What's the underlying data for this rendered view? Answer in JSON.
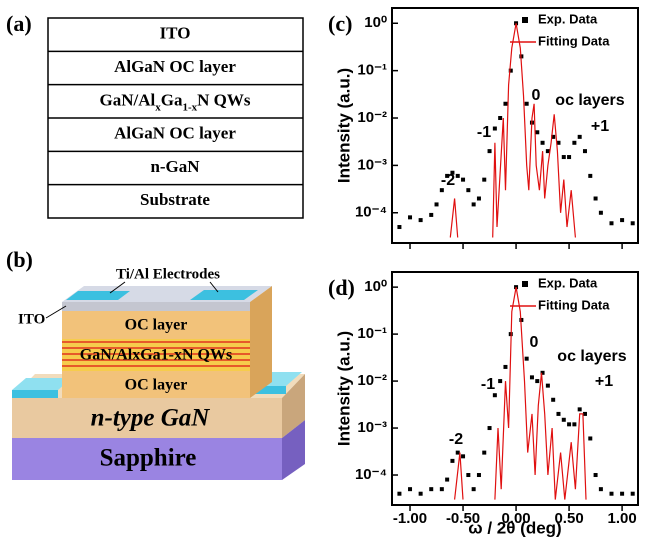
{
  "panel_a": {
    "label": "(a)",
    "layers": [
      "ITO",
      "AlGaN OC layer",
      [
        "GaN/Al",
        "x",
        "Ga",
        "1-x",
        "N  QWs"
      ],
      "AlGaN OC layer",
      "n-GaN",
      "Substrate"
    ]
  },
  "panel_b": {
    "label": "(b)",
    "electrodes": "Ti/Al Electrodes",
    "ito": "ITO",
    "oc_top": "OC layer",
    "qws": "GaN/AlxGa1-xN QWs",
    "oc_bottom": "OC layer",
    "n_gan": "n-type GaN",
    "sapphire": "Sapphire"
  },
  "chart_data": [
    {
      "type": "line",
      "panel_label": "(c)",
      "y_label": "Intensity (a.u.)",
      "log_y": true,
      "legend": "upper right",
      "xlim": [
        -1.17,
        1.15
      ],
      "xticks": [
        -1,
        -0.5,
        0,
        0.5,
        1
      ],
      "ylim": [
        2.3e-05,
        2.1
      ],
      "yticks": [
        {
          "value": 0.0001,
          "label": "10⁻⁴"
        },
        {
          "value": 0.001,
          "label": "10⁻³"
        },
        {
          "value": 0.01,
          "label": "10⁻²"
        },
        {
          "value": 0.1,
          "label": "10⁻¹"
        },
        {
          "value": 1,
          "label": "10⁰"
        }
      ],
      "annotations": [
        "-2",
        "-1",
        "0",
        "oc layers",
        "+1"
      ],
      "series": [
        {
          "name": "Exp. Data",
          "mode": "markers",
          "color": "#000000",
          "x": [
            -1.1,
            -1,
            -0.9,
            -0.8,
            -0.75,
            -0.7,
            -0.65,
            -0.6,
            -0.55,
            -0.5,
            -0.45,
            -0.4,
            -0.35,
            -0.3,
            -0.25,
            -0.2,
            -0.15,
            -0.1,
            -0.05,
            0,
            0.05,
            0.1,
            0.15,
            0.2,
            0.25,
            0.3,
            0.35,
            0.4,
            0.45,
            0.5,
            0.55,
            0.6,
            0.65,
            0.7,
            0.75,
            0.8,
            0.9,
            1,
            1.1
          ],
          "values": [
            5e-05,
            8e-05,
            7e-05,
            9e-05,
            0.00015,
            0.0003,
            0.0006,
            0.0007,
            0.0006,
            0.0005,
            0.0003,
            0.00015,
            0.0002,
            0.0005,
            0.002,
            0.006,
            0.01,
            0.02,
            0.1,
            1,
            0.2,
            0.02,
            0.008,
            0.005,
            0.003,
            0.002,
            0.004,
            0.003,
            0.0015,
            0.0015,
            0.003,
            0.004,
            0.002,
            0.0006,
            0.0002,
            0.0001,
            6e-05,
            7e-05,
            6e-05
          ]
        },
        {
          "name": "Fitting Data",
          "mode": "line",
          "color": "#e01010",
          "x": [
            -0.62,
            -0.58,
            -0.55,
            -0.4,
            -0.22,
            -0.2,
            -0.18,
            -0.12,
            -0.1,
            -0.07,
            -0.04,
            0,
            0.04,
            0.07,
            0.1,
            0.12,
            0.15,
            0.17,
            0.19,
            0.22,
            0.25,
            0.27,
            0.3,
            0.33,
            0.36,
            0.39,
            0.42,
            0.45,
            0.48,
            0.52,
            0.56
          ],
          "values": [
            3e-05,
            0.0002,
            3e-05,
            null,
            3e-05,
            0.003,
            5e-05,
            0.01,
            0.0003,
            0.05,
            0.3,
            1,
            0.3,
            0.03,
            0.001,
            0.0003,
            0.01,
            0.02,
            0.001,
            0.0003,
            0.002,
            0.0002,
            0.001,
            0.003,
            0.012,
            0.002,
            0.0001,
            0.0005,
            5e-05,
            0.0003,
            3e-05
          ]
        }
      ]
    },
    {
      "type": "line",
      "panel_label": "(d)",
      "y_label": "Intensity (a.u.)",
      "x_label": "ω / 2θ (deg)",
      "log_y": true,
      "legend": "upper right",
      "xlim": [
        -1.17,
        1.15
      ],
      "xticks": [
        {
          "value": -1,
          "label": "-1.00"
        },
        {
          "value": -0.5,
          "label": "-0.50"
        },
        {
          "value": 0,
          "label": "0.00"
        },
        {
          "value": 0.5,
          "label": "0.50"
        },
        {
          "value": 1,
          "label": "1.00"
        }
      ],
      "ylim": [
        2.3e-05,
        2.1
      ],
      "yticks": [
        {
          "value": 0.0001,
          "label": "10⁻⁴"
        },
        {
          "value": 0.001,
          "label": "10⁻³"
        },
        {
          "value": 0.01,
          "label": "10⁻²"
        },
        {
          "value": 0.1,
          "label": "10⁻¹"
        },
        {
          "value": 1,
          "label": "10⁰"
        }
      ],
      "annotations": [
        "-2",
        "-1",
        "0",
        "oc layers",
        "+1"
      ],
      "series": [
        {
          "name": "Exp. Data",
          "mode": "markers",
          "color": "#000000",
          "x": [
            -1.1,
            -1,
            -0.9,
            -0.8,
            -0.7,
            -0.65,
            -0.6,
            -0.55,
            -0.5,
            -0.45,
            -0.4,
            -0.35,
            -0.3,
            -0.25,
            -0.2,
            -0.15,
            -0.1,
            -0.05,
            0,
            0.05,
            0.1,
            0.15,
            0.2,
            0.25,
            0.3,
            0.35,
            0.4,
            0.45,
            0.5,
            0.55,
            0.6,
            0.65,
            0.7,
            0.75,
            0.8,
            0.9,
            1,
            1.1
          ],
          "values": [
            4e-05,
            5e-05,
            4e-05,
            5e-05,
            5e-05,
            8e-05,
            0.0002,
            0.0003,
            0.00025,
            0.0001,
            5e-05,
            0.0001,
            0.0003,
            0.001,
            0.005,
            0.01,
            0.02,
            0.1,
            1,
            0.2,
            0.03,
            0.012,
            0.01,
            0.015,
            0.008,
            0.004,
            0.002,
            0.0015,
            0.0012,
            0.0012,
            0.0025,
            0.002,
            0.0006,
            0.0001,
            5e-05,
            4e-05,
            4e-05,
            4e-05
          ]
        },
        {
          "name": "Fitting Data",
          "mode": "line",
          "color": "#e01010",
          "x": [
            -0.58,
            -0.53,
            -0.5,
            -0.35,
            -0.2,
            -0.17,
            -0.14,
            -0.1,
            -0.07,
            -0.04,
            0,
            0.04,
            0.08,
            0.11,
            0.15,
            0.18,
            0.21,
            0.24,
            0.27,
            0.3,
            0.34,
            0.37,
            0.42,
            0.46,
            0.52,
            0.56,
            0.6,
            0.63,
            0.66
          ],
          "values": [
            3e-05,
            0.0003,
            3e-05,
            null,
            3e-05,
            0.001,
            5e-05,
            0.01,
            0.001,
            0.3,
            1,
            0.3,
            0.01,
            0.0003,
            0.002,
            0.0001,
            0.003,
            0.015,
            0.002,
            0.0001,
            0.001,
            3e-05,
            0.0003,
            3e-05,
            0.0005,
            5e-05,
            0.002,
            0.002,
            3e-05
          ]
        }
      ]
    }
  ]
}
